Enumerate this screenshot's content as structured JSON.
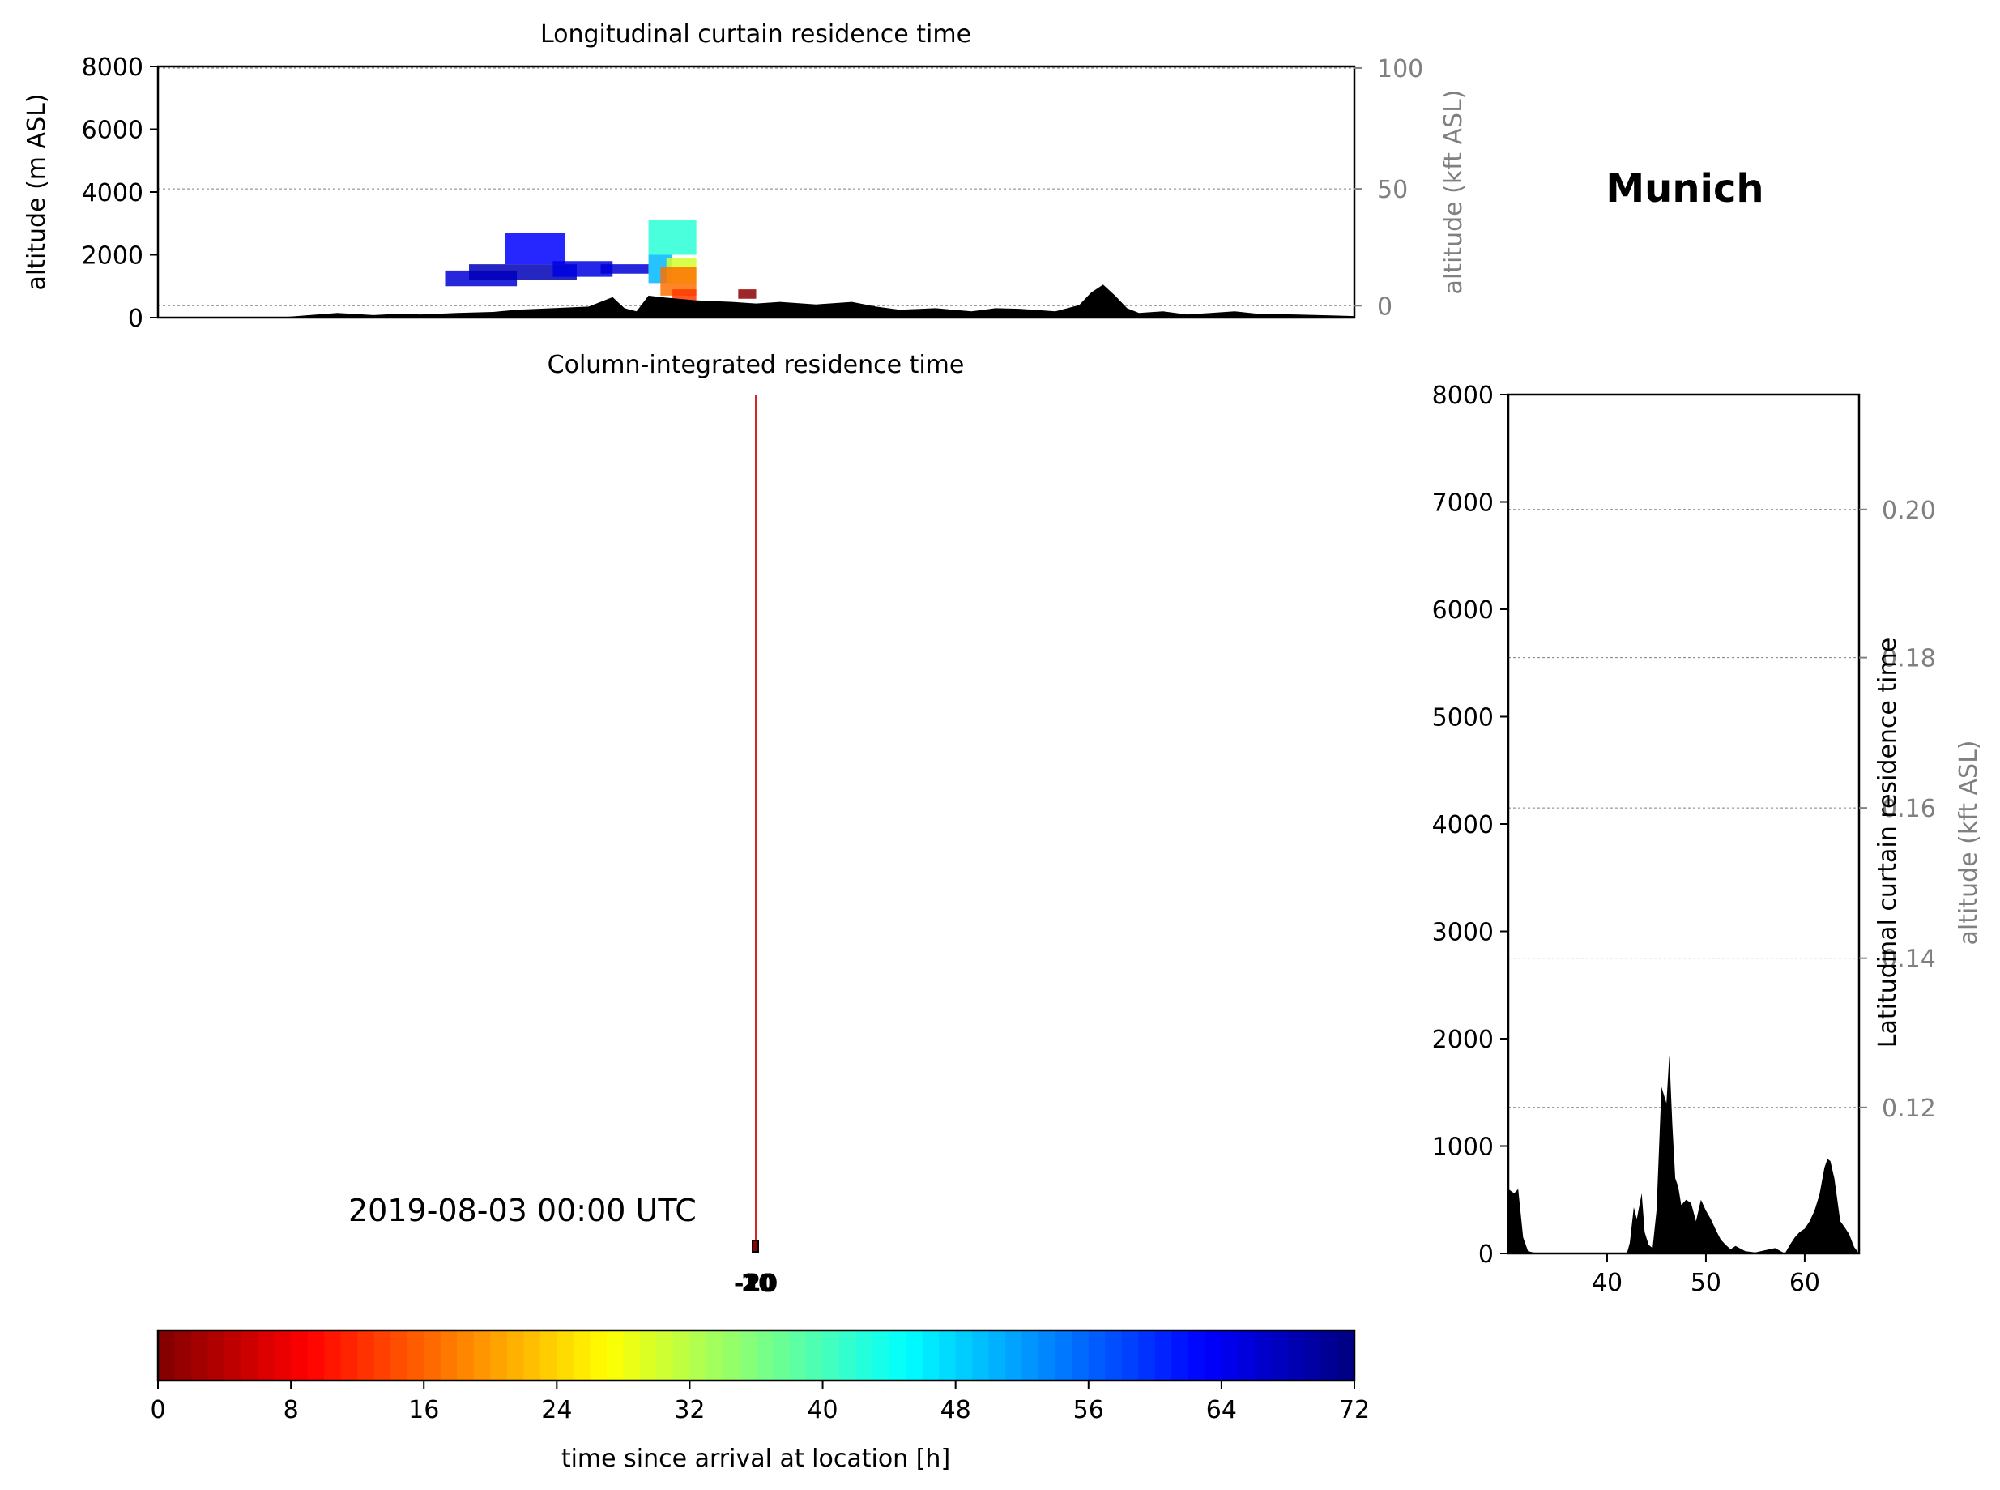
{
  "figure": {
    "place": "Munich",
    "timestamp": "2019-08-03 00:00 UTC"
  },
  "colors": {
    "terrain": "#000000",
    "grid": "#808080",
    "marker_line": "#d62728",
    "secondary_axis_text": "#808080"
  },
  "chart_data": [
    {
      "id": "longitudinal",
      "type": "heatmap",
      "title": "Longitudinal curtain residence time",
      "ylabel": "altitude (m ASL)",
      "ylabel_right": "altitude (kft ASL)",
      "ylim": [
        0,
        8000
      ],
      "yticks": [
        "0",
        "2000",
        "4000",
        "6000",
        "8000"
      ],
      "yticks_right": [
        "0",
        "50",
        "100"
      ],
      "grid": "horizontal dotted",
      "xlim": [
        0,
        1
      ],
      "terrain_profile": {
        "x": [
          0.0,
          0.1,
          0.15,
          0.18,
          0.2,
          0.22,
          0.25,
          0.28,
          0.3,
          0.33,
          0.36,
          0.38,
          0.39,
          0.4,
          0.41,
          0.42,
          0.45,
          0.48,
          0.5,
          0.52,
          0.55,
          0.58,
          0.6,
          0.62,
          0.65,
          0.68,
          0.7,
          0.72,
          0.75,
          0.77,
          0.78,
          0.79,
          0.8,
          0.81,
          0.82,
          0.84,
          0.86,
          0.88,
          0.9,
          0.92,
          0.95,
          1.0
        ],
        "altitude_m": [
          0,
          0,
          150,
          80,
          120,
          100,
          150,
          180,
          250,
          300,
          350,
          650,
          300,
          200,
          700,
          650,
          550,
          500,
          450,
          500,
          420,
          500,
          350,
          250,
          300,
          200,
          300,
          280,
          200,
          400,
          800,
          1050,
          700,
          300,
          150,
          200,
          100,
          150,
          200,
          120,
          100,
          50
        ]
      },
      "residence_cells": [
        {
          "x0": 0.24,
          "x1": 0.3,
          "y0": 1000,
          "y1": 1500,
          "age_h": 66
        },
        {
          "x0": 0.26,
          "x1": 0.35,
          "y0": 1200,
          "y1": 1700,
          "age_h": 68
        },
        {
          "x0": 0.29,
          "x1": 0.34,
          "y0": 1700,
          "y1": 2700,
          "age_h": 63
        },
        {
          "x0": 0.33,
          "x1": 0.38,
          "y0": 1300,
          "y1": 1800,
          "age_h": 65
        },
        {
          "x0": 0.37,
          "x1": 0.41,
          "y0": 1400,
          "y1": 1700,
          "age_h": 66
        },
        {
          "x0": 0.41,
          "x1": 0.45,
          "y0": 2000,
          "y1": 3100,
          "age_h": 42
        },
        {
          "x0": 0.41,
          "x1": 0.43,
          "y0": 1100,
          "y1": 2000,
          "age_h": 50
        },
        {
          "x0": 0.425,
          "x1": 0.45,
          "y0": 1100,
          "y1": 1900,
          "age_h": 30
        },
        {
          "x0": 0.42,
          "x1": 0.45,
          "y0": 700,
          "y1": 1600,
          "age_h": 17
        },
        {
          "x0": 0.43,
          "x1": 0.45,
          "y0": 500,
          "y1": 900,
          "age_h": 13
        },
        {
          "x0": 0.485,
          "x1": 0.5,
          "y0": 600,
          "y1": 900,
          "age_h": 1
        }
      ]
    },
    {
      "id": "column",
      "type": "scatter",
      "title": "Column-integrated residence time",
      "xticks_cluster": [
        "-10",
        "-20",
        "10",
        "20"
      ]
    },
    {
      "id": "latitudinal",
      "type": "area",
      "title": "",
      "ylabel": "Latitudinal curtain residence time",
      "ylabel_right": "altitude (kft ASL)",
      "ylim": [
        0,
        8000
      ],
      "yticks": [
        "0",
        "1000",
        "2000",
        "3000",
        "4000",
        "5000",
        "6000",
        "7000",
        "8000"
      ],
      "yticks_right": [
        "0.12",
        "0.14",
        "0.16",
        "0.18",
        "0.20"
      ],
      "xlim": [
        30,
        65.5
      ],
      "xticks": [
        "40",
        "50",
        "60"
      ],
      "grid": "horizontal dotted",
      "terrain_profile": {
        "lat": [
          30,
          30.3,
          30.6,
          31,
          31.5,
          32,
          33,
          35,
          40,
          42,
          42.3,
          42.7,
          43,
          43.5,
          43.8,
          44.2,
          44.6,
          45,
          45.5,
          46,
          46.3,
          46.6,
          46.9,
          47.2,
          47.5,
          48,
          48.5,
          49,
          49.5,
          50,
          50.5,
          51,
          51.5,
          52,
          52.5,
          53,
          54,
          55,
          56,
          57,
          58,
          58.5,
          59,
          59.5,
          60,
          60.5,
          61,
          61.5,
          62,
          62.3,
          62.6,
          63,
          63.3,
          63.6,
          64,
          64.5,
          65,
          65.5
        ],
        "altitude_m": [
          600,
          580,
          560,
          600,
          150,
          20,
          0,
          0,
          0,
          0,
          100,
          430,
          320,
          560,
          200,
          80,
          50,
          400,
          1550,
          1400,
          1850,
          1200,
          700,
          620,
          450,
          500,
          470,
          300,
          500,
          400,
          320,
          220,
          130,
          80,
          40,
          70,
          20,
          10,
          30,
          50,
          0,
          80,
          150,
          200,
          230,
          300,
          400,
          550,
          800,
          880,
          860,
          700,
          500,
          300,
          250,
          180,
          60,
          0
        ]
      }
    },
    {
      "id": "colorbar",
      "type": "heatmap",
      "colormap": "jet_r",
      "range": [
        0,
        72
      ],
      "levels": 72,
      "ticks": [
        "0",
        "8",
        "16",
        "24",
        "32",
        "40",
        "48",
        "56",
        "64",
        "72"
      ],
      "xlabel": "time since arrival at location [h]"
    }
  ]
}
